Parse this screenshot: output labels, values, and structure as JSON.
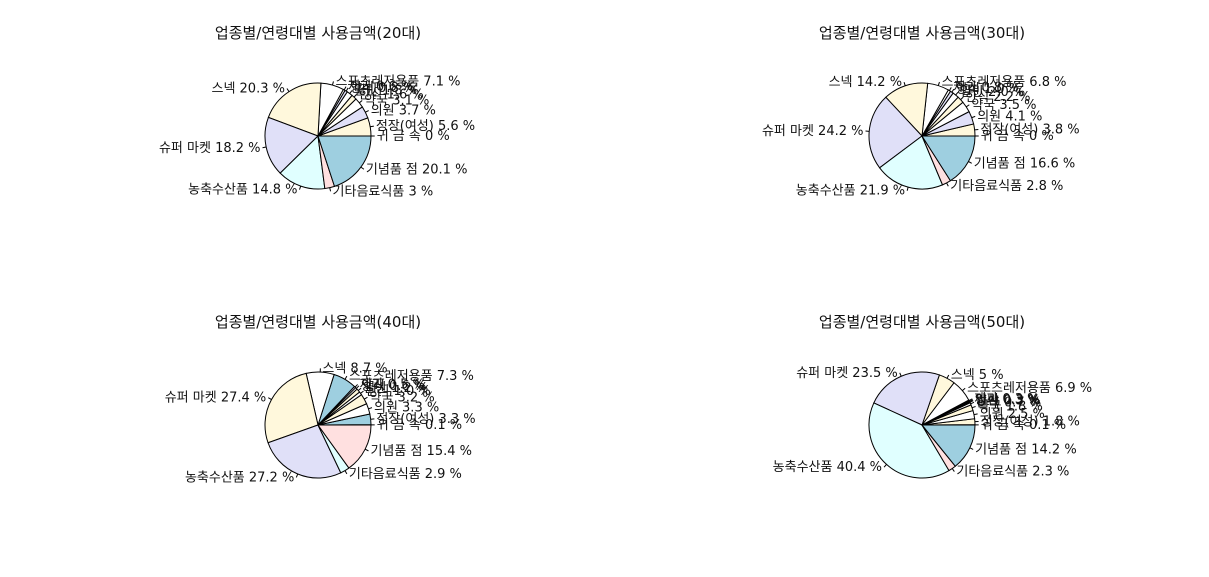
{
  "chart_data": [
    {
      "type": "pie",
      "title": "업종별/연령대별 사용금액(20대)",
      "slices": [
        {
          "label": "귀 금 속 0 %",
          "value": 0.0,
          "color": "#ffffff"
        },
        {
          "label": "정장(여성) 5.6 %",
          "value": 5.6,
          "color": "#fff8dc"
        },
        {
          "label": "의원 3.7 %",
          "value": 3.7,
          "color": "#e0e0f8"
        },
        {
          "label": "약국 3.1 %",
          "value": 3.1,
          "color": "#ffffff"
        },
        {
          "label": "한식 1.6 %",
          "value": 1.6,
          "color": "#fff8dc"
        },
        {
          "label": "일반 1.8 %",
          "value": 1.8,
          "color": "#ffffff"
        },
        {
          "label": "양식 0.8 %",
          "value": 0.8,
          "color": "#e0e0f8"
        },
        {
          "label": "제과 0.6 %",
          "value": 0.6,
          "color": "#ffffff"
        },
        {
          "label": "스포츠레저용품 7.1 %",
          "value": 7.1,
          "color": "#ffffff"
        },
        {
          "label": "스넥 20.3 %",
          "value": 20.3,
          "color": "#fff8dc"
        },
        {
          "label": "슈퍼 마켓 18.2 %",
          "value": 18.2,
          "color": "#e0e0f8"
        },
        {
          "label": "농축수산품 14.8 %",
          "value": 14.8,
          "color": "#e0ffff"
        },
        {
          "label": "기타음료식품 3 %",
          "value": 3.0,
          "color": "#ffe0e0"
        },
        {
          "label": "기념품 점 20.1 %",
          "value": 20.1,
          "color": "#9ecfe0"
        }
      ]
    },
    {
      "type": "pie",
      "title": "업종별/연령대별 사용금액(30대)",
      "slices": [
        {
          "label": "귀 금 속 0 %",
          "value": 0.0,
          "color": "#ffffff"
        },
        {
          "label": "정장(여성) 3.8 %",
          "value": 3.8,
          "color": "#fff8dc"
        },
        {
          "label": "의원 4.1 %",
          "value": 4.1,
          "color": "#e0e0f8"
        },
        {
          "label": "약국 3.5 %",
          "value": 3.5,
          "color": "#ffffff"
        },
        {
          "label": "한식 2.2 %",
          "value": 2.2,
          "color": "#fff8dc"
        },
        {
          "label": "일반 2.0 %",
          "value": 2.0,
          "color": "#ffffff"
        },
        {
          "label": "양식 1.0 %",
          "value": 1.0,
          "color": "#e0e0f8"
        },
        {
          "label": "제과 0.8 %",
          "value": 0.8,
          "color": "#ffffff"
        },
        {
          "label": "스포츠레저용품 6.8 %",
          "value": 6.8,
          "color": "#ffffff"
        },
        {
          "label": "스넥 14.2 %",
          "value": 14.2,
          "color": "#fff8dc"
        },
        {
          "label": "슈퍼 마켓 24.2 %",
          "value": 24.2,
          "color": "#e0e0f8"
        },
        {
          "label": "농축수산품 21.9 %",
          "value": 21.9,
          "color": "#e0ffff"
        },
        {
          "label": "기타음료식품 2.8 %",
          "value": 2.8,
          "color": "#ffe0e0"
        },
        {
          "label": "기념품 점 16.6 %",
          "value": 16.6,
          "color": "#9ecfe0"
        }
      ]
    },
    {
      "type": "pie",
      "title": "업종별/연령대별 사용금액(40대)",
      "slices": [
        {
          "label": "귀 금 속 0.1 %",
          "value": 0.1,
          "color": "#ffffff"
        },
        {
          "label": "정장(여성) 3.3 %",
          "value": 3.3,
          "color": "#9ecfe0"
        },
        {
          "label": "의원 3.3 %",
          "value": 3.3,
          "color": "#ffffff"
        },
        {
          "label": "약국 3.2 %",
          "value": 3.2,
          "color": "#fff8dc"
        },
        {
          "label": "한식 1.0 %",
          "value": 1.0,
          "color": "#ffffff"
        },
        {
          "label": "일반 1.2 %",
          "value": 1.2,
          "color": "#fff8dc"
        },
        {
          "label": "양식 0.6 %",
          "value": 0.6,
          "color": "#ffffff"
        },
        {
          "label": "제과 0.5 %",
          "value": 0.5,
          "color": "#e0e0f8"
        },
        {
          "label": "스포츠레저용품 7.3 %",
          "value": 7.3,
          "color": "#9ecfe0"
        },
        {
          "label": "스넥 8.7 %",
          "value": 8.7,
          "color": "#ffffff"
        },
        {
          "label": "슈퍼 마켓 27.4 %",
          "value": 27.4,
          "color": "#fff8dc"
        },
        {
          "label": "농축수산품 27.2 %",
          "value": 27.2,
          "color": "#e0e0f8"
        },
        {
          "label": "기타음료식품 2.9 %",
          "value": 2.9,
          "color": "#e0ffff"
        },
        {
          "label": "기념품 점 15.4 %",
          "value": 15.4,
          "color": "#ffe0e0"
        }
      ]
    },
    {
      "type": "pie",
      "title": "업종별/연령대별 사용금액(50대)",
      "slices": [
        {
          "label": "귀 금 속 0.1 %",
          "value": 0.1,
          "color": "#ffffff"
        },
        {
          "label": "정장(여성) 1.8 %",
          "value": 1.8,
          "color": "#fff8dc"
        },
        {
          "label": "의원 2.5 %",
          "value": 2.5,
          "color": "#ffffff"
        },
        {
          "label": "약국 1.8 %",
          "value": 1.8,
          "color": "#fff8dc"
        },
        {
          "label": "한식 0.7 %",
          "value": 0.7,
          "color": "#ffffff"
        },
        {
          "label": "일반 0.3 %",
          "value": 0.3,
          "color": "#e0e0f8"
        },
        {
          "label": "양식 0.3 %",
          "value": 0.3,
          "color": "#ffffff"
        },
        {
          "label": "제과 0.3 %",
          "value": 0.3,
          "color": "#fff8dc"
        },
        {
          "label": "스포츠레저용품 6.9 %",
          "value": 6.9,
          "color": "#ffffff"
        },
        {
          "label": "스넥 5 %",
          "value": 5.0,
          "color": "#fff8dc"
        },
        {
          "label": "슈퍼 마켓 23.5 %",
          "value": 23.5,
          "color": "#e0e0f8"
        },
        {
          "label": "농축수산품 40.4 %",
          "value": 40.4,
          "color": "#e0ffff"
        },
        {
          "label": "기타음료식품 2.3 %",
          "value": 2.3,
          "color": "#ffe0e0"
        },
        {
          "label": "기념품 점 14.2 %",
          "value": 14.2,
          "color": "#9ecfe0"
        }
      ]
    }
  ]
}
